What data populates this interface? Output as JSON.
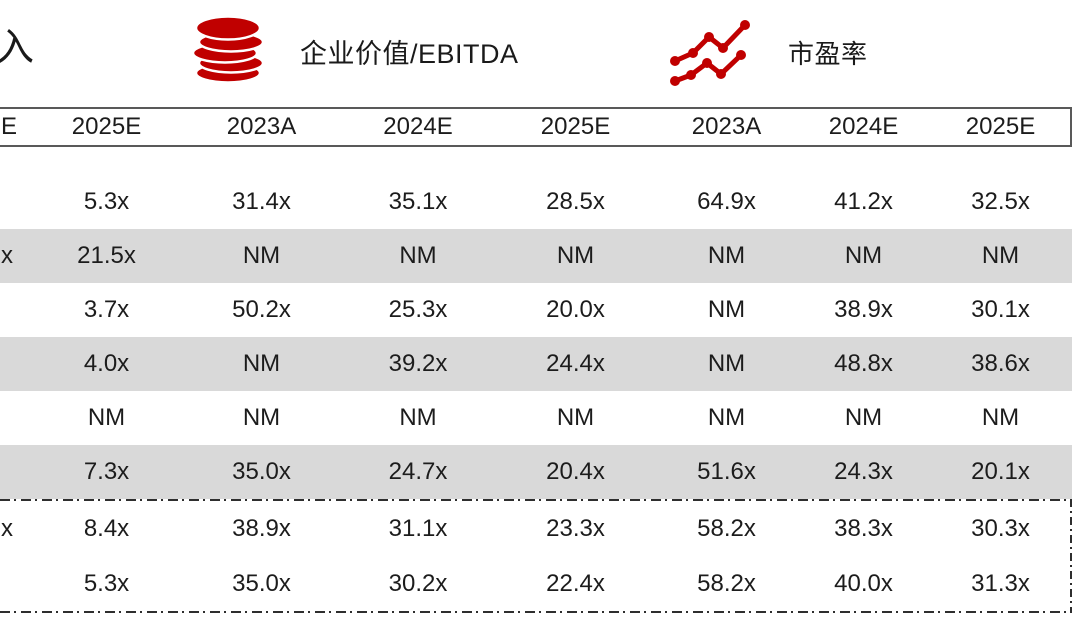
{
  "legend": {
    "partial_item_label": "入",
    "items": [
      {
        "icon": "coins-icon",
        "label": "企业价值/EBITDA"
      },
      {
        "icon": "trend-lines-icon",
        "label": "市盈率"
      }
    ]
  },
  "table": {
    "headers": [
      "E",
      "2025E",
      "2023A",
      "2024E",
      "2025E",
      "2023A",
      "2024E",
      "2025E"
    ],
    "rows": [
      {
        "shaded": false,
        "cells": [
          "",
          "5.3x",
          "31.4x",
          "35.1x",
          "28.5x",
          "64.9x",
          "41.2x",
          "32.5x"
        ]
      },
      {
        "shaded": true,
        "cells": [
          "x",
          "21.5x",
          "NM",
          "NM",
          "NM",
          "NM",
          "NM",
          "NM"
        ]
      },
      {
        "shaded": false,
        "cells": [
          "",
          "3.7x",
          "50.2x",
          "25.3x",
          "20.0x",
          "NM",
          "38.9x",
          "30.1x"
        ]
      },
      {
        "shaded": true,
        "cells": [
          "",
          "4.0x",
          "NM",
          "39.2x",
          "24.4x",
          "NM",
          "48.8x",
          "38.6x"
        ]
      },
      {
        "shaded": false,
        "cells": [
          "",
          "NM",
          "NM",
          "NM",
          "NM",
          "NM",
          "NM",
          "NM"
        ]
      },
      {
        "shaded": true,
        "cells": [
          "",
          "7.3x",
          "35.0x",
          "24.7x",
          "20.4x",
          "51.6x",
          "24.3x",
          "20.1x"
        ]
      }
    ],
    "summary_rows": [
      {
        "shaded": false,
        "cells": [
          "x",
          "8.4x",
          "38.9x",
          "31.1x",
          "23.3x",
          "58.2x",
          "38.3x",
          "30.3x"
        ]
      },
      {
        "shaded": false,
        "cells": [
          "",
          "5.3x",
          "35.0x",
          "30.2x",
          "22.4x",
          "58.2x",
          "40.0x",
          "31.3x"
        ]
      }
    ]
  },
  "colors": {
    "accent_red": "#C00000",
    "shaded_row": "#D9D9D9"
  }
}
